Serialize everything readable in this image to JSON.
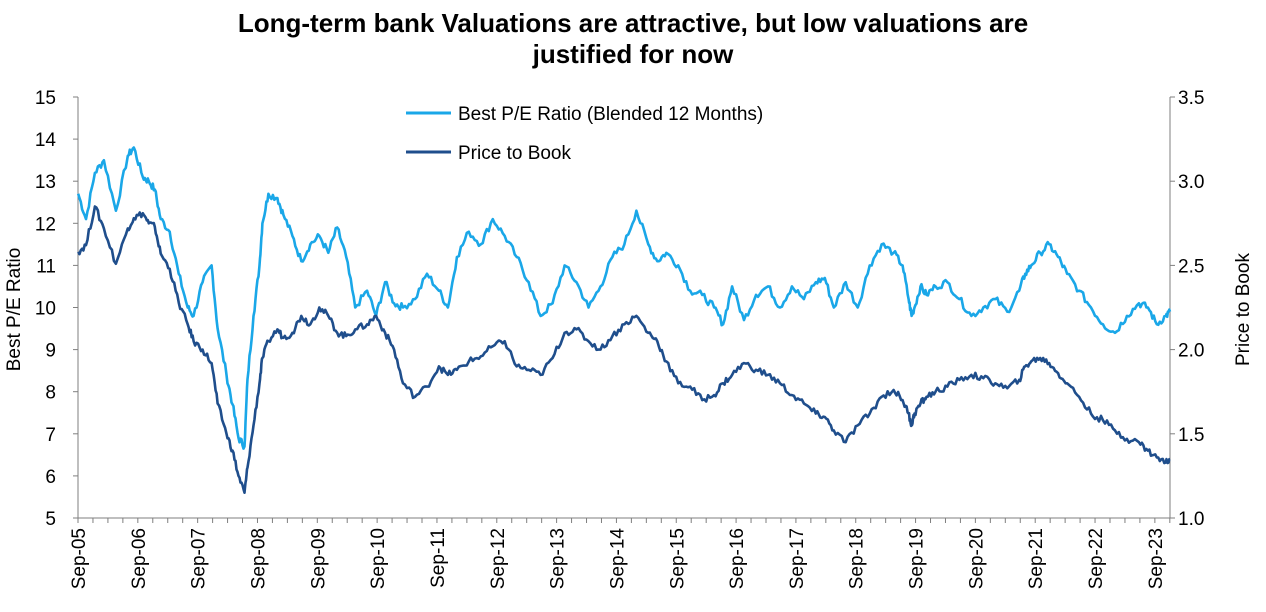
{
  "chart_data": {
    "type": "line",
    "title_line1": "Long-term bank Valuations are attractive, but low valuations are",
    "title_line2": "justified for now",
    "ylabel_left": "Best P/E Ratio",
    "ylabel_right": "Price to Book",
    "ylim_left": [
      5,
      15
    ],
    "ylim_right": [
      1.0,
      3.5
    ],
    "yticks_left": [
      "15",
      "14",
      "13",
      "12",
      "11",
      "10",
      "9",
      "8",
      "7",
      "6",
      "5"
    ],
    "yticks_right": [
      "3.5",
      "3.0",
      "2.5",
      "2.0",
      "1.5",
      "1.0"
    ],
    "xlim": [
      2005.667,
      2023.92
    ],
    "x_tick_labels": [
      "Sep-05",
      "Sep-06",
      "Sep-07",
      "Sep-08",
      "Sep-09",
      "Sep-10",
      "Sep-11",
      "Sep-12",
      "Sep-13",
      "Sep-14",
      "Sep-15",
      "Sep-16",
      "Sep-17",
      "Sep-18",
      "Sep-19",
      "Sep-20",
      "Sep-21",
      "Sep-22",
      "Sep-23"
    ],
    "grid": false,
    "legend_position": "top-center",
    "series": [
      {
        "name": "Best P/E Ratio (Blended 12 Months)",
        "axis": "left",
        "color": "#1aa7e8",
        "x": [
          2005.67,
          2005.8,
          2005.95,
          2006.1,
          2006.3,
          2006.5,
          2006.6,
          2006.75,
          2006.85,
          2006.95,
          2007.05,
          2007.2,
          2007.35,
          2007.5,
          2007.6,
          2007.75,
          2007.9,
          2008.0,
          2008.15,
          2008.25,
          2008.35,
          2008.45,
          2008.5,
          2008.6,
          2008.7,
          2008.75,
          2008.85,
          2009.0,
          2009.1,
          2009.25,
          2009.4,
          2009.55,
          2009.7,
          2009.85,
          2010.0,
          2010.15,
          2010.3,
          2010.5,
          2010.65,
          2010.8,
          2010.95,
          2011.1,
          2011.3,
          2011.5,
          2011.7,
          2011.85,
          2012.0,
          2012.2,
          2012.4,
          2012.6,
          2012.8,
          2013.0,
          2013.2,
          2013.4,
          2013.6,
          2013.8,
          2014.0,
          2014.2,
          2014.4,
          2014.6,
          2014.8,
          2015.0,
          2015.2,
          2015.35,
          2015.5,
          2015.7,
          2015.9,
          2016.1,
          2016.3,
          2016.45,
          2016.6,
          2016.8,
          2017.0,
          2017.2,
          2017.4,
          2017.6,
          2017.8,
          2018.0,
          2018.15,
          2018.3,
          2018.5,
          2018.7,
          2018.9,
          2019.1,
          2019.3,
          2019.45,
          2019.55,
          2019.6,
          2019.65,
          2019.75,
          2019.85,
          2020.0,
          2020.2,
          2020.4,
          2020.6,
          2020.8,
          2021.0,
          2021.2,
          2021.4,
          2021.5,
          2021.6,
          2021.75,
          2021.9,
          2022.05,
          2022.2,
          2022.4,
          2022.6,
          2022.8,
          2023.0,
          2023.2,
          2023.4,
          2023.55,
          2023.7,
          2023.85,
          2023.92
        ],
        "values": [
          12.7,
          12.1,
          13.2,
          13.5,
          12.3,
          13.6,
          13.8,
          13.1,
          13.0,
          12.8,
          12.1,
          11.8,
          10.8,
          10.0,
          9.8,
          10.6,
          11.0,
          9.5,
          8.4,
          7.7,
          6.9,
          6.7,
          8.3,
          9.8,
          11.0,
          12.0,
          12.7,
          12.6,
          12.2,
          11.7,
          11.1,
          11.5,
          11.7,
          11.3,
          11.9,
          11.2,
          10.0,
          10.4,
          9.8,
          10.6,
          10.1,
          10.0,
          10.2,
          10.8,
          10.4,
          10.0,
          11.2,
          11.8,
          11.5,
          12.1,
          11.7,
          11.2,
          10.6,
          9.8,
          10.1,
          11.0,
          10.6,
          10.0,
          10.5,
          11.2,
          11.5,
          12.3,
          11.5,
          11.1,
          11.3,
          11.0,
          10.4,
          10.3,
          10.0,
          9.6,
          10.5,
          9.7,
          10.3,
          10.5,
          10.0,
          10.5,
          10.2,
          10.6,
          10.7,
          10.0,
          10.6,
          10.0,
          11.0,
          11.5,
          11.3,
          11.0,
          10.2,
          9.8,
          10.0,
          10.5,
          10.3,
          10.5,
          10.6,
          10.2,
          9.8,
          10.0,
          10.2,
          9.9,
          10.4,
          10.8,
          11.0,
          11.3,
          11.5,
          11.2,
          10.8,
          10.4,
          10.0,
          9.6,
          9.4,
          9.8,
          10.1,
          10.0,
          9.6,
          9.8,
          9.9
        ],
        "values_note": "approximate"
      },
      {
        "name": "Price to Book",
        "axis": "right",
        "color": "#1f4e8c",
        "x": [
          2005.67,
          2005.8,
          2005.95,
          2006.1,
          2006.3,
          2006.5,
          2006.6,
          2006.75,
          2006.85,
          2006.95,
          2007.05,
          2007.2,
          2007.35,
          2007.5,
          2007.6,
          2007.75,
          2007.9,
          2008.0,
          2008.15,
          2008.25,
          2008.35,
          2008.45,
          2008.5,
          2008.6,
          2008.7,
          2008.75,
          2008.85,
          2009.0,
          2009.1,
          2009.25,
          2009.4,
          2009.55,
          2009.7,
          2009.85,
          2010.0,
          2010.15,
          2010.3,
          2010.5,
          2010.65,
          2010.8,
          2010.95,
          2011.1,
          2011.3,
          2011.5,
          2011.7,
          2011.85,
          2012.0,
          2012.2,
          2012.4,
          2012.6,
          2012.8,
          2013.0,
          2013.2,
          2013.4,
          2013.6,
          2013.8,
          2014.0,
          2014.2,
          2014.4,
          2014.6,
          2014.8,
          2015.0,
          2015.2,
          2015.35,
          2015.5,
          2015.7,
          2015.9,
          2016.1,
          2016.3,
          2016.45,
          2016.6,
          2016.8,
          2017.0,
          2017.2,
          2017.4,
          2017.6,
          2017.8,
          2018.0,
          2018.15,
          2018.3,
          2018.5,
          2018.7,
          2018.9,
          2019.1,
          2019.3,
          2019.45,
          2019.55,
          2019.6,
          2019.65,
          2019.75,
          2019.85,
          2020.0,
          2020.2,
          2020.4,
          2020.6,
          2020.8,
          2021.0,
          2021.2,
          2021.4,
          2021.5,
          2021.6,
          2021.75,
          2021.9,
          2022.05,
          2022.2,
          2022.4,
          2022.6,
          2022.8,
          2023.0,
          2023.2,
          2023.4,
          2023.55,
          2023.7,
          2023.85,
          2023.92
        ],
        "values": [
          2.58,
          2.62,
          2.85,
          2.72,
          2.51,
          2.72,
          2.78,
          2.81,
          2.75,
          2.73,
          2.57,
          2.48,
          2.28,
          2.15,
          2.05,
          2.0,
          1.92,
          1.68,
          1.5,
          1.4,
          1.25,
          1.15,
          1.3,
          1.55,
          1.8,
          1.95,
          2.05,
          2.12,
          2.07,
          2.1,
          2.2,
          2.15,
          2.25,
          2.2,
          2.1,
          2.08,
          2.12,
          2.15,
          2.2,
          2.1,
          2.0,
          1.8,
          1.72,
          1.78,
          1.9,
          1.85,
          1.88,
          1.93,
          1.96,
          2.02,
          2.05,
          1.9,
          1.88,
          1.85,
          1.95,
          2.1,
          2.12,
          2.05,
          2.0,
          2.08,
          2.15,
          2.2,
          2.1,
          2.05,
          1.93,
          1.8,
          1.78,
          1.7,
          1.73,
          1.8,
          1.85,
          1.92,
          1.88,
          1.85,
          1.8,
          1.73,
          1.68,
          1.62,
          1.6,
          1.52,
          1.45,
          1.55,
          1.62,
          1.72,
          1.76,
          1.7,
          1.62,
          1.55,
          1.62,
          1.68,
          1.72,
          1.75,
          1.78,
          1.82,
          1.85,
          1.83,
          1.8,
          1.77,
          1.82,
          1.9,
          1.93,
          1.95,
          1.92,
          1.86,
          1.8,
          1.72,
          1.62,
          1.58,
          1.52,
          1.47,
          1.45,
          1.4,
          1.36,
          1.33,
          1.35
        ],
        "values_note": "approximate"
      }
    ]
  }
}
